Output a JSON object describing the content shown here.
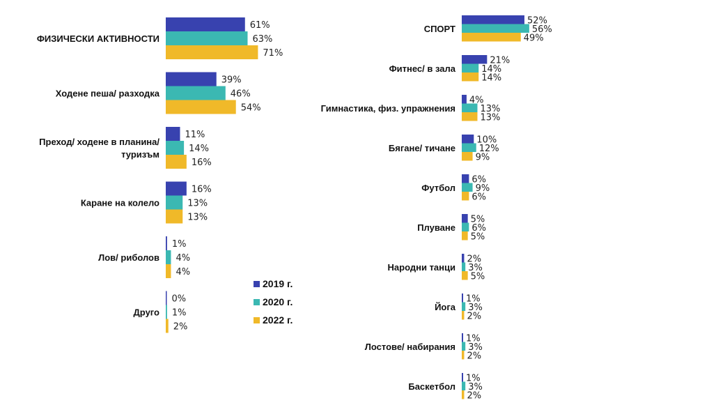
{
  "chart_data": [
    {
      "type": "bar",
      "orientation": "horizontal",
      "title": "",
      "xlabel": "",
      "ylabel": "",
      "unit": "%",
      "xlim": [
        0,
        100
      ],
      "grid": false,
      "categories": [
        [
          "ФИЗИЧЕСКИ АКТИВНОСТИ"
        ],
        [
          "Ходене пеша/ разходка"
        ],
        [
          "Преход/ ходене в планина/",
          "туризъм"
        ],
        [
          "Каране на колело"
        ],
        [
          "Лов/ риболов"
        ],
        [
          "Друго"
        ]
      ],
      "series": [
        {
          "name": "2019 г.",
          "color": "#3842AF",
          "values": [
            61,
            39,
            11,
            16,
            1,
            0
          ]
        },
        {
          "name": "2020 г.",
          "color": "#3BB8B2",
          "values": [
            63,
            46,
            14,
            13,
            4,
            1
          ]
        },
        {
          "name": "2022 г.",
          "color": "#F0B929",
          "values": [
            71,
            54,
            16,
            13,
            4,
            2
          ]
        }
      ]
    },
    {
      "type": "bar",
      "orientation": "horizontal",
      "title": "",
      "xlabel": "",
      "ylabel": "",
      "unit": "%",
      "xlim": [
        0,
        100
      ],
      "grid": false,
      "categories": [
        [
          "СПОРТ"
        ],
        [
          "Фитнес/ в зала"
        ],
        [
          "Гимнастика, физ. упражнения"
        ],
        [
          "Бягане/ тичане"
        ],
        [
          "Футбол"
        ],
        [
          "Плуване"
        ],
        [
          "Народни танци"
        ],
        [
          "Йога"
        ],
        [
          "Лостове/ набирания"
        ],
        [
          "Баскетбол"
        ]
      ],
      "series": [
        {
          "name": "2019 г.",
          "color": "#3842AF",
          "values": [
            52,
            21,
            4,
            10,
            6,
            5,
            2,
            1,
            1,
            1
          ]
        },
        {
          "name": "2020 г.",
          "color": "#3BB8B2",
          "values": [
            56,
            14,
            13,
            12,
            9,
            6,
            3,
            3,
            3,
            3
          ]
        },
        {
          "name": "2022 г.",
          "color": "#F0B929",
          "values": [
            49,
            14,
            13,
            9,
            6,
            5,
            5,
            2,
            2,
            2
          ]
        }
      ]
    }
  ],
  "legend": {
    "position": "center",
    "items": [
      {
        "label": "2019 г.",
        "color": "#3842AF"
      },
      {
        "label": "2020 г.",
        "color": "#3BB8B2"
      },
      {
        "label": "2022 г.",
        "color": "#F0B929"
      }
    ]
  }
}
